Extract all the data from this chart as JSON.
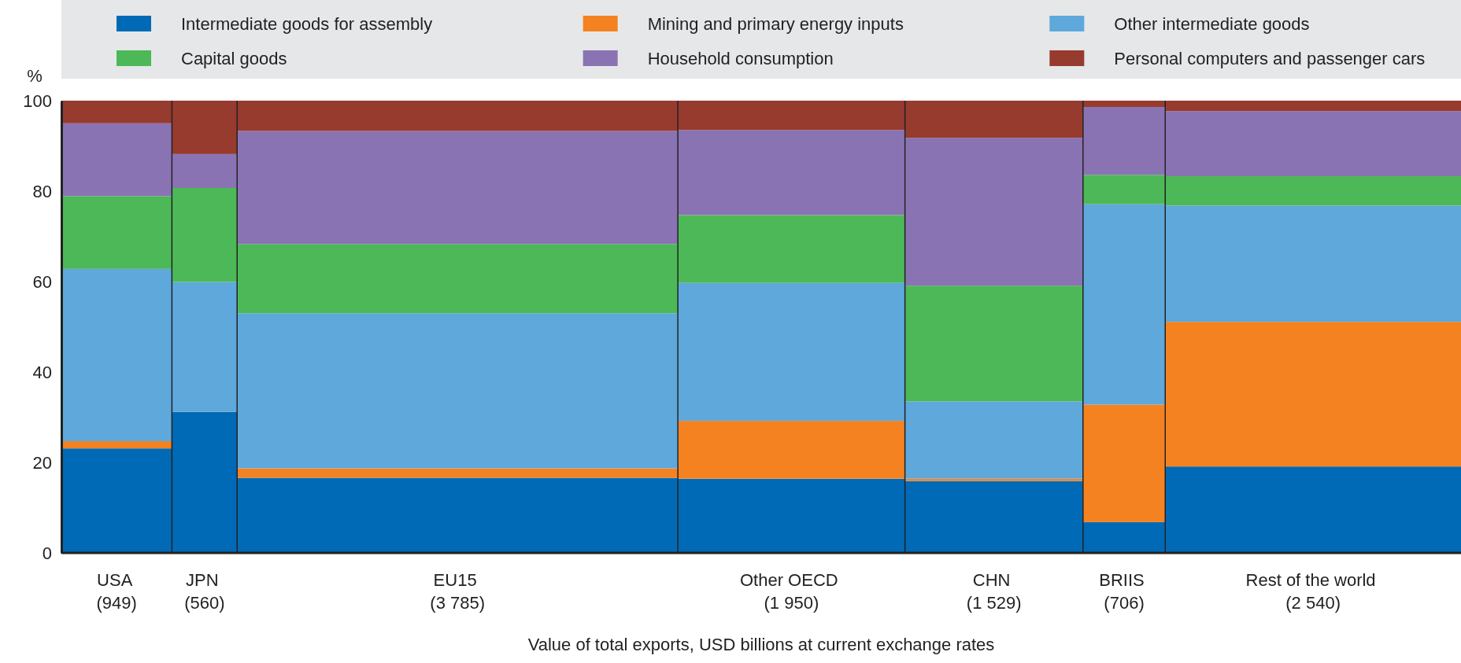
{
  "chart_data": {
    "type": "bar",
    "stacked": true,
    "xlabel": "Value of total exports, USD billions at current exchange rates",
    "ylabel": "%",
    "categories": [
      "USA\n(949)",
      "JPN\n(560)",
      "EU15\n(3 785)",
      "Other OECD\n(1 950)",
      "CHN\n(1 529)",
      "BRIIS\n(706)",
      "Rest of the world\n(2 540)"
    ],
    "ylim": [
      0,
      100
    ],
    "yticks": [
      0,
      20,
      40,
      60,
      80,
      100
    ],
    "legend": "top",
    "series": [
      {
        "name": "Intermediate goods for assembly",
        "color": "#006ab6",
        "values": [
          23.1,
          31.2,
          16.6,
          16.4,
          15.9,
          6.8,
          19.1
        ]
      },
      {
        "name": "Mining and primary energy inputs",
        "color": "#f58220",
        "values": [
          1.6,
          0,
          2.1,
          12.8,
          0.5,
          26.0,
          32.0
        ]
      },
      {
        "name": "Other intermediate goods",
        "color": "#5ea8dc",
        "values": [
          38.1,
          28.7,
          34.3,
          30.5,
          17.1,
          44.3,
          25.7
        ]
      },
      {
        "name": "Capital goods",
        "color": "#4db857",
        "values": [
          16.1,
          20.8,
          15.3,
          15.0,
          25.6,
          6.5,
          6.5
        ]
      },
      {
        "name": "Household consumption",
        "color": "#8a73b3",
        "values": [
          16.1,
          7.5,
          25.0,
          18.8,
          32.7,
          15.0,
          14.4
        ]
      },
      {
        "name": "Personal computers and passenger cars",
        "color": "#963b2e",
        "values": [
          5.0,
          11.8,
          6.7,
          6.5,
          8.2,
          1.4,
          2.3
        ]
      }
    ]
  }
}
